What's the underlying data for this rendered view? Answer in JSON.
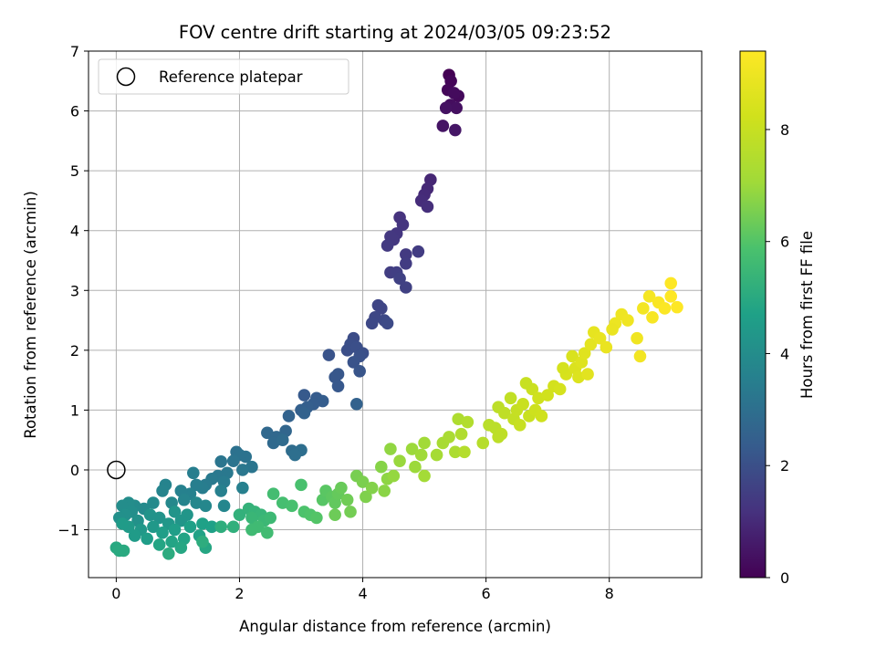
{
  "chart_data": {
    "type": "scatter",
    "title": "FOV centre drift starting at 2024/03/05 09:23:52",
    "xlabel": "Angular distance from reference (arcmin)",
    "ylabel": "Rotation from reference (arcmin)",
    "xlim": [
      -0.45,
      9.5
    ],
    "ylim": [
      -1.8,
      7.0
    ],
    "xticks": [
      0,
      2,
      4,
      6,
      8
    ],
    "xtick_labels": [
      "0",
      "2",
      "4",
      "6",
      "8"
    ],
    "yticks": [
      -1,
      0,
      1,
      2,
      3,
      4,
      5,
      6,
      7
    ],
    "ytick_labels": [
      "−1",
      "0",
      "1",
      "2",
      "3",
      "4",
      "5",
      "6",
      "7"
    ],
    "grid": true,
    "legend": {
      "placement": "top-left",
      "entries": [
        "Reference platepar"
      ]
    },
    "reference_point": {
      "x": 0,
      "y": 0
    },
    "colorbar": {
      "label": "Hours from first FF file",
      "colormap": "viridis",
      "range": [
        0,
        9.4
      ],
      "ticks": [
        0,
        2,
        4,
        6,
        8
      ],
      "tick_labels": [
        "0",
        "2",
        "4",
        "6",
        "8"
      ]
    },
    "points": [
      {
        "x": 5.4,
        "y": 6.6,
        "h": 0.0
      },
      {
        "x": 5.43,
        "y": 6.5,
        "h": 0.1
      },
      {
        "x": 5.38,
        "y": 6.35,
        "h": 0.15
      },
      {
        "x": 5.55,
        "y": 6.25,
        "h": 0.2
      },
      {
        "x": 5.48,
        "y": 6.3,
        "h": 0.25
      },
      {
        "x": 5.42,
        "y": 6.1,
        "h": 0.3
      },
      {
        "x": 5.52,
        "y": 6.05,
        "h": 0.35
      },
      {
        "x": 5.35,
        "y": 6.05,
        "h": 0.4
      },
      {
        "x": 5.3,
        "y": 5.75,
        "h": 0.45
      },
      {
        "x": 5.5,
        "y": 5.68,
        "h": 0.5
      },
      {
        "x": 5.1,
        "y": 4.85,
        "h": 0.9
      },
      {
        "x": 5.05,
        "y": 4.7,
        "h": 0.95
      },
      {
        "x": 5.0,
        "y": 4.6,
        "h": 1.0
      },
      {
        "x": 4.95,
        "y": 4.5,
        "h": 1.05
      },
      {
        "x": 5.05,
        "y": 4.4,
        "h": 1.1
      },
      {
        "x": 4.6,
        "y": 4.22,
        "h": 1.2
      },
      {
        "x": 4.65,
        "y": 4.1,
        "h": 1.25
      },
      {
        "x": 4.55,
        "y": 3.95,
        "h": 1.3
      },
      {
        "x": 4.5,
        "y": 3.85,
        "h": 1.35
      },
      {
        "x": 4.45,
        "y": 3.9,
        "h": 1.35
      },
      {
        "x": 4.4,
        "y": 3.75,
        "h": 1.4
      },
      {
        "x": 4.7,
        "y": 3.6,
        "h": 1.4
      },
      {
        "x": 4.9,
        "y": 3.65,
        "h": 1.45
      },
      {
        "x": 4.7,
        "y": 3.45,
        "h": 1.45
      },
      {
        "x": 4.45,
        "y": 3.3,
        "h": 1.5
      },
      {
        "x": 4.55,
        "y": 3.3,
        "h": 1.55
      },
      {
        "x": 4.6,
        "y": 3.2,
        "h": 1.6
      },
      {
        "x": 4.7,
        "y": 3.05,
        "h": 1.6
      },
      {
        "x": 4.25,
        "y": 2.75,
        "h": 1.7
      },
      {
        "x": 4.3,
        "y": 2.7,
        "h": 1.7
      },
      {
        "x": 4.2,
        "y": 2.55,
        "h": 1.75
      },
      {
        "x": 4.35,
        "y": 2.5,
        "h": 1.8
      },
      {
        "x": 4.15,
        "y": 2.45,
        "h": 1.8
      },
      {
        "x": 4.4,
        "y": 2.45,
        "h": 1.85
      },
      {
        "x": 3.85,
        "y": 2.2,
        "h": 1.9
      },
      {
        "x": 3.8,
        "y": 2.1,
        "h": 1.95
      },
      {
        "x": 3.75,
        "y": 2.0,
        "h": 1.95
      },
      {
        "x": 3.9,
        "y": 2.05,
        "h": 2.0
      },
      {
        "x": 4.0,
        "y": 1.95,
        "h": 2.0
      },
      {
        "x": 3.95,
        "y": 1.9,
        "h": 2.05
      },
      {
        "x": 3.85,
        "y": 1.8,
        "h": 2.1
      },
      {
        "x": 3.45,
        "y": 1.92,
        "h": 2.1
      },
      {
        "x": 3.95,
        "y": 1.65,
        "h": 2.15
      },
      {
        "x": 3.6,
        "y": 1.6,
        "h": 2.2
      },
      {
        "x": 3.55,
        "y": 1.55,
        "h": 2.2
      },
      {
        "x": 3.6,
        "y": 1.4,
        "h": 2.25
      },
      {
        "x": 3.05,
        "y": 1.25,
        "h": 2.3
      },
      {
        "x": 3.25,
        "y": 1.2,
        "h": 2.35
      },
      {
        "x": 3.35,
        "y": 1.15,
        "h": 2.4
      },
      {
        "x": 3.2,
        "y": 1.1,
        "h": 2.4
      },
      {
        "x": 3.1,
        "y": 1.05,
        "h": 2.45
      },
      {
        "x": 3.0,
        "y": 1.0,
        "h": 2.5
      },
      {
        "x": 3.05,
        "y": 0.95,
        "h": 2.55
      },
      {
        "x": 2.8,
        "y": 0.9,
        "h": 2.6
      },
      {
        "x": 3.9,
        "y": 1.1,
        "h": 2.55
      },
      {
        "x": 2.75,
        "y": 0.65,
        "h": 2.7
      },
      {
        "x": 2.45,
        "y": 0.62,
        "h": 2.75
      },
      {
        "x": 2.6,
        "y": 0.55,
        "h": 2.75
      },
      {
        "x": 2.55,
        "y": 0.45,
        "h": 2.8
      },
      {
        "x": 2.7,
        "y": 0.5,
        "h": 2.85
      },
      {
        "x": 2.85,
        "y": 0.32,
        "h": 2.9
      },
      {
        "x": 3.0,
        "y": 0.33,
        "h": 2.95
      },
      {
        "x": 2.9,
        "y": 0.25,
        "h": 3.0
      },
      {
        "x": 1.95,
        "y": 0.3,
        "h": 3.05
      },
      {
        "x": 2.1,
        "y": 0.22,
        "h": 3.1
      },
      {
        "x": 2.0,
        "y": 0.25,
        "h": 3.1
      },
      {
        "x": 1.9,
        "y": 0.15,
        "h": 3.15
      },
      {
        "x": 2.2,
        "y": 0.05,
        "h": 3.2
      },
      {
        "x": 1.7,
        "y": 0.14,
        "h": 3.2
      },
      {
        "x": 2.05,
        "y": 0.0,
        "h": 3.25
      },
      {
        "x": 1.8,
        "y": -0.05,
        "h": 3.3
      },
      {
        "x": 1.65,
        "y": -0.1,
        "h": 3.3
      },
      {
        "x": 1.55,
        "y": -0.15,
        "h": 3.35
      },
      {
        "x": 1.75,
        "y": -0.2,
        "h": 3.4
      },
      {
        "x": 1.45,
        "y": -0.25,
        "h": 3.4
      },
      {
        "x": 1.4,
        "y": -0.3,
        "h": 3.45
      },
      {
        "x": 1.3,
        "y": -0.25,
        "h": 3.5
      },
      {
        "x": 1.25,
        "y": -0.05,
        "h": 3.5
      },
      {
        "x": 2.05,
        "y": -0.3,
        "h": 3.55
      },
      {
        "x": 1.7,
        "y": -0.35,
        "h": 3.55
      },
      {
        "x": 1.2,
        "y": -0.4,
        "h": 3.6
      },
      {
        "x": 1.05,
        "y": -0.35,
        "h": 3.6
      },
      {
        "x": 0.8,
        "y": -0.25,
        "h": 3.65
      },
      {
        "x": 0.75,
        "y": -0.35,
        "h": 3.7
      },
      {
        "x": 1.1,
        "y": -0.5,
        "h": 3.7
      },
      {
        "x": 1.75,
        "y": -0.6,
        "h": 3.75
      },
      {
        "x": 1.3,
        "y": -0.55,
        "h": 3.8
      },
      {
        "x": 1.45,
        "y": -0.6,
        "h": 3.8
      },
      {
        "x": 0.9,
        "y": -0.55,
        "h": 3.85
      },
      {
        "x": 0.6,
        "y": -0.55,
        "h": 3.9
      },
      {
        "x": 0.45,
        "y": -0.65,
        "h": 3.9
      },
      {
        "x": 0.3,
        "y": -0.6,
        "h": 3.95
      },
      {
        "x": 0.2,
        "y": -0.55,
        "h": 4.0
      },
      {
        "x": 0.1,
        "y": -0.6,
        "h": 4.0
      },
      {
        "x": 0.25,
        "y": -0.7,
        "h": 4.05
      },
      {
        "x": 0.15,
        "y": -0.75,
        "h": 4.1
      },
      {
        "x": 0.05,
        "y": -0.8,
        "h": 4.1
      },
      {
        "x": 0.35,
        "y": -0.85,
        "h": 4.15
      },
      {
        "x": 0.55,
        "y": -0.75,
        "h": 4.2
      },
      {
        "x": 0.7,
        "y": -0.8,
        "h": 4.2
      },
      {
        "x": 0.95,
        "y": -0.7,
        "h": 4.25
      },
      {
        "x": 1.15,
        "y": -0.75,
        "h": 4.3
      },
      {
        "x": 1.05,
        "y": -0.85,
        "h": 4.3
      },
      {
        "x": 0.85,
        "y": -0.9,
        "h": 4.35
      },
      {
        "x": 0.6,
        "y": -0.95,
        "h": 4.4
      },
      {
        "x": 0.4,
        "y": -1.0,
        "h": 4.4
      },
      {
        "x": 0.2,
        "y": -0.95,
        "h": 4.45
      },
      {
        "x": 0.1,
        "y": -0.9,
        "h": 4.5
      },
      {
        "x": 0.3,
        "y": -1.1,
        "h": 4.5
      },
      {
        "x": 0.5,
        "y": -1.15,
        "h": 4.55
      },
      {
        "x": 0.75,
        "y": -1.05,
        "h": 4.6
      },
      {
        "x": 0.95,
        "y": -1.0,
        "h": 4.6
      },
      {
        "x": 1.2,
        "y": -0.95,
        "h": 4.65
      },
      {
        "x": 1.4,
        "y": -0.9,
        "h": 4.7
      },
      {
        "x": 1.55,
        "y": -0.95,
        "h": 4.7
      },
      {
        "x": 1.35,
        "y": -1.1,
        "h": 4.75
      },
      {
        "x": 1.1,
        "y": -1.15,
        "h": 4.8
      },
      {
        "x": 0.9,
        "y": -1.2,
        "h": 4.8
      },
      {
        "x": 0.7,
        "y": -1.25,
        "h": 4.85
      },
      {
        "x": 1.05,
        "y": -1.3,
        "h": 4.9
      },
      {
        "x": 1.45,
        "y": -1.3,
        "h": 4.9
      },
      {
        "x": 0.0,
        "y": -1.3,
        "h": 4.95
      },
      {
        "x": 0.12,
        "y": -1.35,
        "h": 5.0
      },
      {
        "x": 0.05,
        "y": -1.35,
        "h": 5.0
      },
      {
        "x": 0.85,
        "y": -1.4,
        "h": 5.05
      },
      {
        "x": 1.4,
        "y": -1.2,
        "h": 5.1
      },
      {
        "x": 1.7,
        "y": -0.95,
        "h": 5.15
      },
      {
        "x": 1.9,
        "y": -0.95,
        "h": 5.2
      },
      {
        "x": 2.0,
        "y": -0.75,
        "h": 5.25
      },
      {
        "x": 2.15,
        "y": -0.65,
        "h": 5.3
      },
      {
        "x": 2.25,
        "y": -0.7,
        "h": 5.35
      },
      {
        "x": 2.35,
        "y": -0.75,
        "h": 5.4
      },
      {
        "x": 2.2,
        "y": -0.8,
        "h": 5.45
      },
      {
        "x": 2.4,
        "y": -0.85,
        "h": 5.5
      },
      {
        "x": 2.5,
        "y": -0.8,
        "h": 5.55
      },
      {
        "x": 2.3,
        "y": -0.95,
        "h": 5.6
      },
      {
        "x": 2.2,
        "y": -1.0,
        "h": 5.6
      },
      {
        "x": 2.45,
        "y": -1.05,
        "h": 5.65
      },
      {
        "x": 2.55,
        "y": -0.4,
        "h": 5.7
      },
      {
        "x": 2.7,
        "y": -0.55,
        "h": 5.75
      },
      {
        "x": 2.85,
        "y": -0.6,
        "h": 5.8
      },
      {
        "x": 3.0,
        "y": -0.25,
        "h": 5.85
      },
      {
        "x": 3.05,
        "y": -0.7,
        "h": 5.9
      },
      {
        "x": 3.15,
        "y": -0.75,
        "h": 5.95
      },
      {
        "x": 3.25,
        "y": -0.8,
        "h": 6.0
      },
      {
        "x": 3.35,
        "y": -0.5,
        "h": 6.05
      },
      {
        "x": 3.4,
        "y": -0.35,
        "h": 6.1
      },
      {
        "x": 3.5,
        "y": -0.45,
        "h": 6.15
      },
      {
        "x": 3.55,
        "y": -0.55,
        "h": 6.2
      },
      {
        "x": 3.6,
        "y": -0.4,
        "h": 6.25
      },
      {
        "x": 3.65,
        "y": -0.3,
        "h": 6.3
      },
      {
        "x": 3.55,
        "y": -0.75,
        "h": 6.35
      },
      {
        "x": 3.75,
        "y": -0.5,
        "h": 6.4
      },
      {
        "x": 3.8,
        "y": -0.7,
        "h": 6.45
      },
      {
        "x": 3.9,
        "y": -0.1,
        "h": 6.5
      },
      {
        "x": 4.0,
        "y": -0.2,
        "h": 6.55
      },
      {
        "x": 4.05,
        "y": -0.45,
        "h": 6.6
      },
      {
        "x": 4.15,
        "y": -0.3,
        "h": 6.65
      },
      {
        "x": 4.3,
        "y": 0.05,
        "h": 6.7
      },
      {
        "x": 4.35,
        "y": -0.35,
        "h": 6.75
      },
      {
        "x": 4.4,
        "y": -0.15,
        "h": 6.8
      },
      {
        "x": 4.45,
        "y": 0.35,
        "h": 6.85
      },
      {
        "x": 4.5,
        "y": -0.1,
        "h": 6.9
      },
      {
        "x": 4.6,
        "y": 0.15,
        "h": 6.95
      },
      {
        "x": 4.8,
        "y": 0.35,
        "h": 7.0
      },
      {
        "x": 4.85,
        "y": 0.05,
        "h": 7.0
      },
      {
        "x": 4.95,
        "y": 0.25,
        "h": 7.05
      },
      {
        "x": 5.0,
        "y": 0.45,
        "h": 7.1
      },
      {
        "x": 5.0,
        "y": -0.1,
        "h": 7.15
      },
      {
        "x": 5.2,
        "y": 0.25,
        "h": 7.2
      },
      {
        "x": 5.3,
        "y": 0.45,
        "h": 7.25
      },
      {
        "x": 5.4,
        "y": 0.55,
        "h": 7.3
      },
      {
        "x": 5.5,
        "y": 0.3,
        "h": 7.35
      },
      {
        "x": 5.55,
        "y": 0.85,
        "h": 7.4
      },
      {
        "x": 5.6,
        "y": 0.6,
        "h": 7.45
      },
      {
        "x": 5.7,
        "y": 0.8,
        "h": 7.5
      },
      {
        "x": 5.65,
        "y": 0.3,
        "h": 7.55
      },
      {
        "x": 5.95,
        "y": 0.45,
        "h": 7.6
      },
      {
        "x": 6.05,
        "y": 0.75,
        "h": 7.65
      },
      {
        "x": 6.15,
        "y": 0.7,
        "h": 7.7
      },
      {
        "x": 6.2,
        "y": 1.05,
        "h": 7.75
      },
      {
        "x": 6.25,
        "y": 0.6,
        "h": 7.8
      },
      {
        "x": 6.3,
        "y": 0.95,
        "h": 7.8
      },
      {
        "x": 6.4,
        "y": 1.2,
        "h": 7.85
      },
      {
        "x": 6.45,
        "y": 0.85,
        "h": 7.9
      },
      {
        "x": 6.5,
        "y": 1.0,
        "h": 7.95
      },
      {
        "x": 6.55,
        "y": 0.75,
        "h": 8.0
      },
      {
        "x": 6.6,
        "y": 1.1,
        "h": 8.05
      },
      {
        "x": 6.7,
        "y": 0.9,
        "h": 8.05
      },
      {
        "x": 6.75,
        "y": 1.35,
        "h": 8.1
      },
      {
        "x": 6.8,
        "y": 1.0,
        "h": 8.15
      },
      {
        "x": 6.85,
        "y": 1.2,
        "h": 8.2
      },
      {
        "x": 6.9,
        "y": 0.9,
        "h": 8.2
      },
      {
        "x": 7.0,
        "y": 1.25,
        "h": 8.25
      },
      {
        "x": 7.1,
        "y": 1.4,
        "h": 8.3
      },
      {
        "x": 7.2,
        "y": 1.35,
        "h": 8.35
      },
      {
        "x": 7.3,
        "y": 1.6,
        "h": 8.4
      },
      {
        "x": 7.4,
        "y": 1.9,
        "h": 8.45
      },
      {
        "x": 7.45,
        "y": 1.7,
        "h": 8.5
      },
      {
        "x": 7.5,
        "y": 1.55,
        "h": 8.55
      },
      {
        "x": 7.55,
        "y": 1.8,
        "h": 8.6
      },
      {
        "x": 7.6,
        "y": 1.95,
        "h": 8.65
      },
      {
        "x": 7.65,
        "y": 1.6,
        "h": 8.7
      },
      {
        "x": 7.7,
        "y": 2.1,
        "h": 8.75
      },
      {
        "x": 7.75,
        "y": 2.3,
        "h": 8.8
      },
      {
        "x": 7.85,
        "y": 2.2,
        "h": 8.85
      },
      {
        "x": 7.95,
        "y": 2.05,
        "h": 8.9
      },
      {
        "x": 8.1,
        "y": 2.45,
        "h": 8.95
      },
      {
        "x": 8.2,
        "y": 2.6,
        "h": 9.0
      },
      {
        "x": 8.3,
        "y": 2.5,
        "h": 9.05
      },
      {
        "x": 8.45,
        "y": 2.2,
        "h": 9.05
      },
      {
        "x": 8.5,
        "y": 1.9,
        "h": 9.1
      },
      {
        "x": 8.55,
        "y": 2.7,
        "h": 9.15
      },
      {
        "x": 8.65,
        "y": 2.9,
        "h": 9.2
      },
      {
        "x": 8.7,
        "y": 2.55,
        "h": 9.25
      },
      {
        "x": 8.8,
        "y": 2.8,
        "h": 9.3
      },
      {
        "x": 8.9,
        "y": 2.7,
        "h": 9.35
      },
      {
        "x": 9.0,
        "y": 2.9,
        "h": 9.4
      },
      {
        "x": 9.0,
        "y": 3.12,
        "h": 9.4
      },
      {
        "x": 9.1,
        "y": 2.72,
        "h": 9.4
      },
      {
        "x": 6.65,
        "y": 1.45,
        "h": 8.0
      },
      {
        "x": 6.2,
        "y": 0.55,
        "h": 7.75
      },
      {
        "x": 7.25,
        "y": 1.7,
        "h": 8.35
      },
      {
        "x": 8.05,
        "y": 2.35,
        "h": 8.9
      }
    ]
  }
}
